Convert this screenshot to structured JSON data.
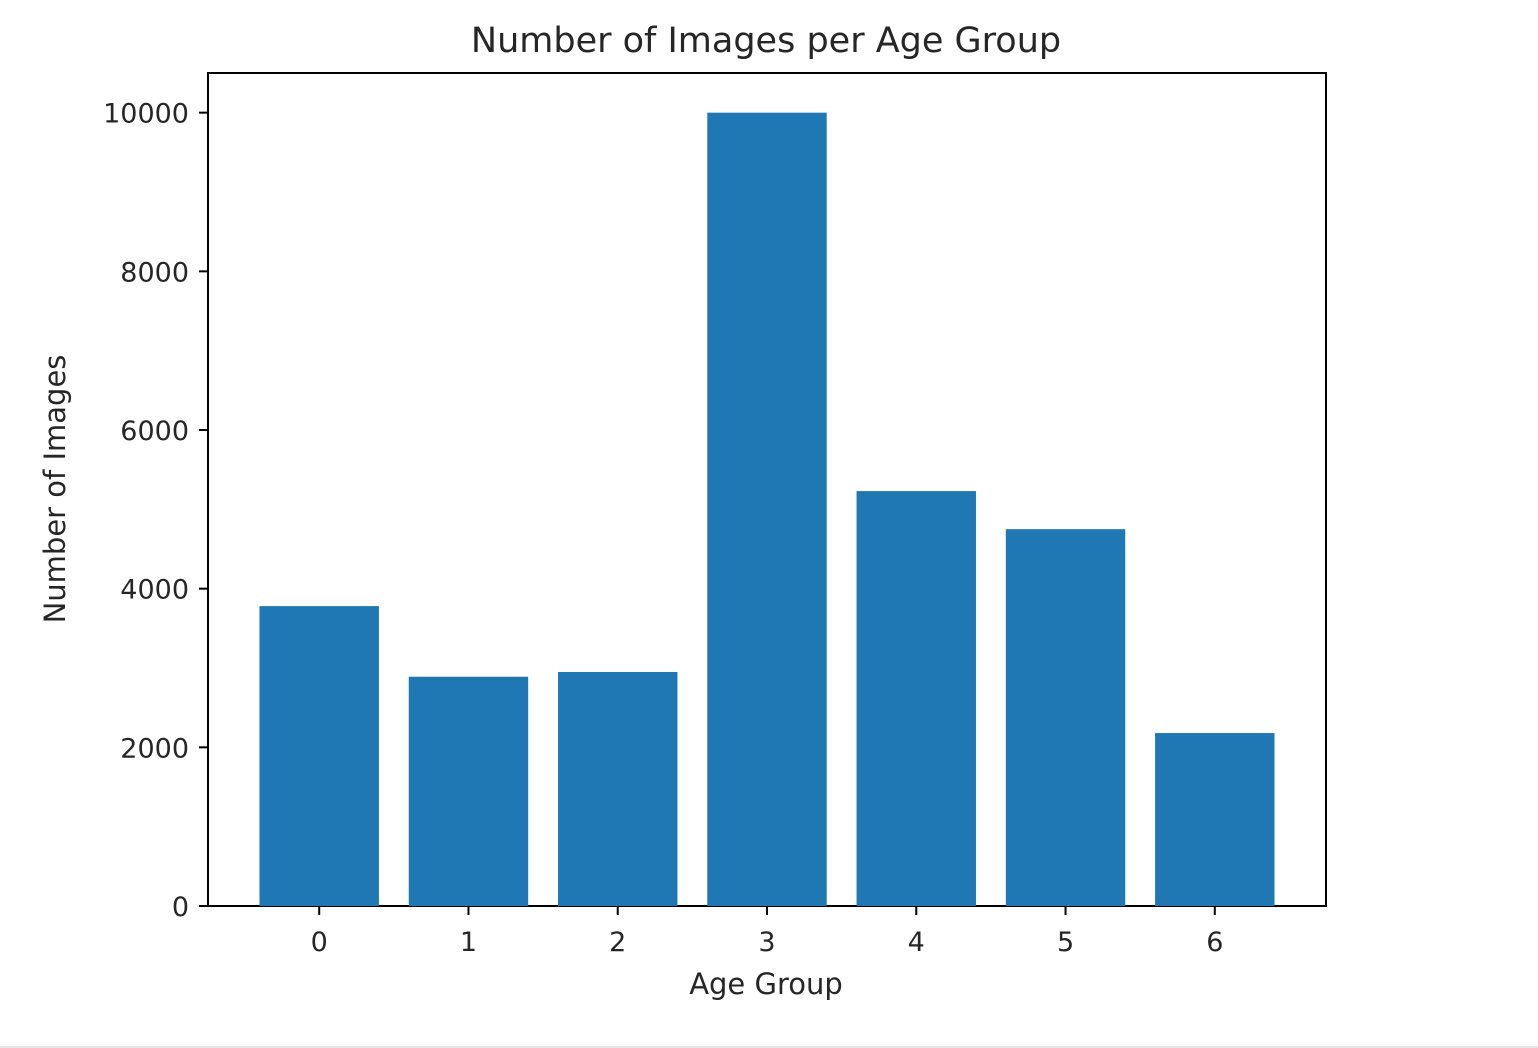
{
  "chart_data": {
    "type": "bar",
    "title": "Number of Images per Age Group",
    "xlabel": "Age Group",
    "ylabel": "Number of Images",
    "categories": [
      "0",
      "1",
      "2",
      "3",
      "4",
      "5",
      "6"
    ],
    "values": [
      3780,
      2890,
      2950,
      10000,
      5230,
      4750,
      2180
    ],
    "ylim": [
      0,
      10500
    ],
    "yticks": [
      0,
      2000,
      4000,
      6000,
      8000,
      10000
    ],
    "ytick_labels": [
      "0",
      "2000",
      "4000",
      "6000",
      "8000",
      "10000"
    ],
    "grid": false,
    "legend": "none",
    "bar_color": "#1f77b4"
  }
}
